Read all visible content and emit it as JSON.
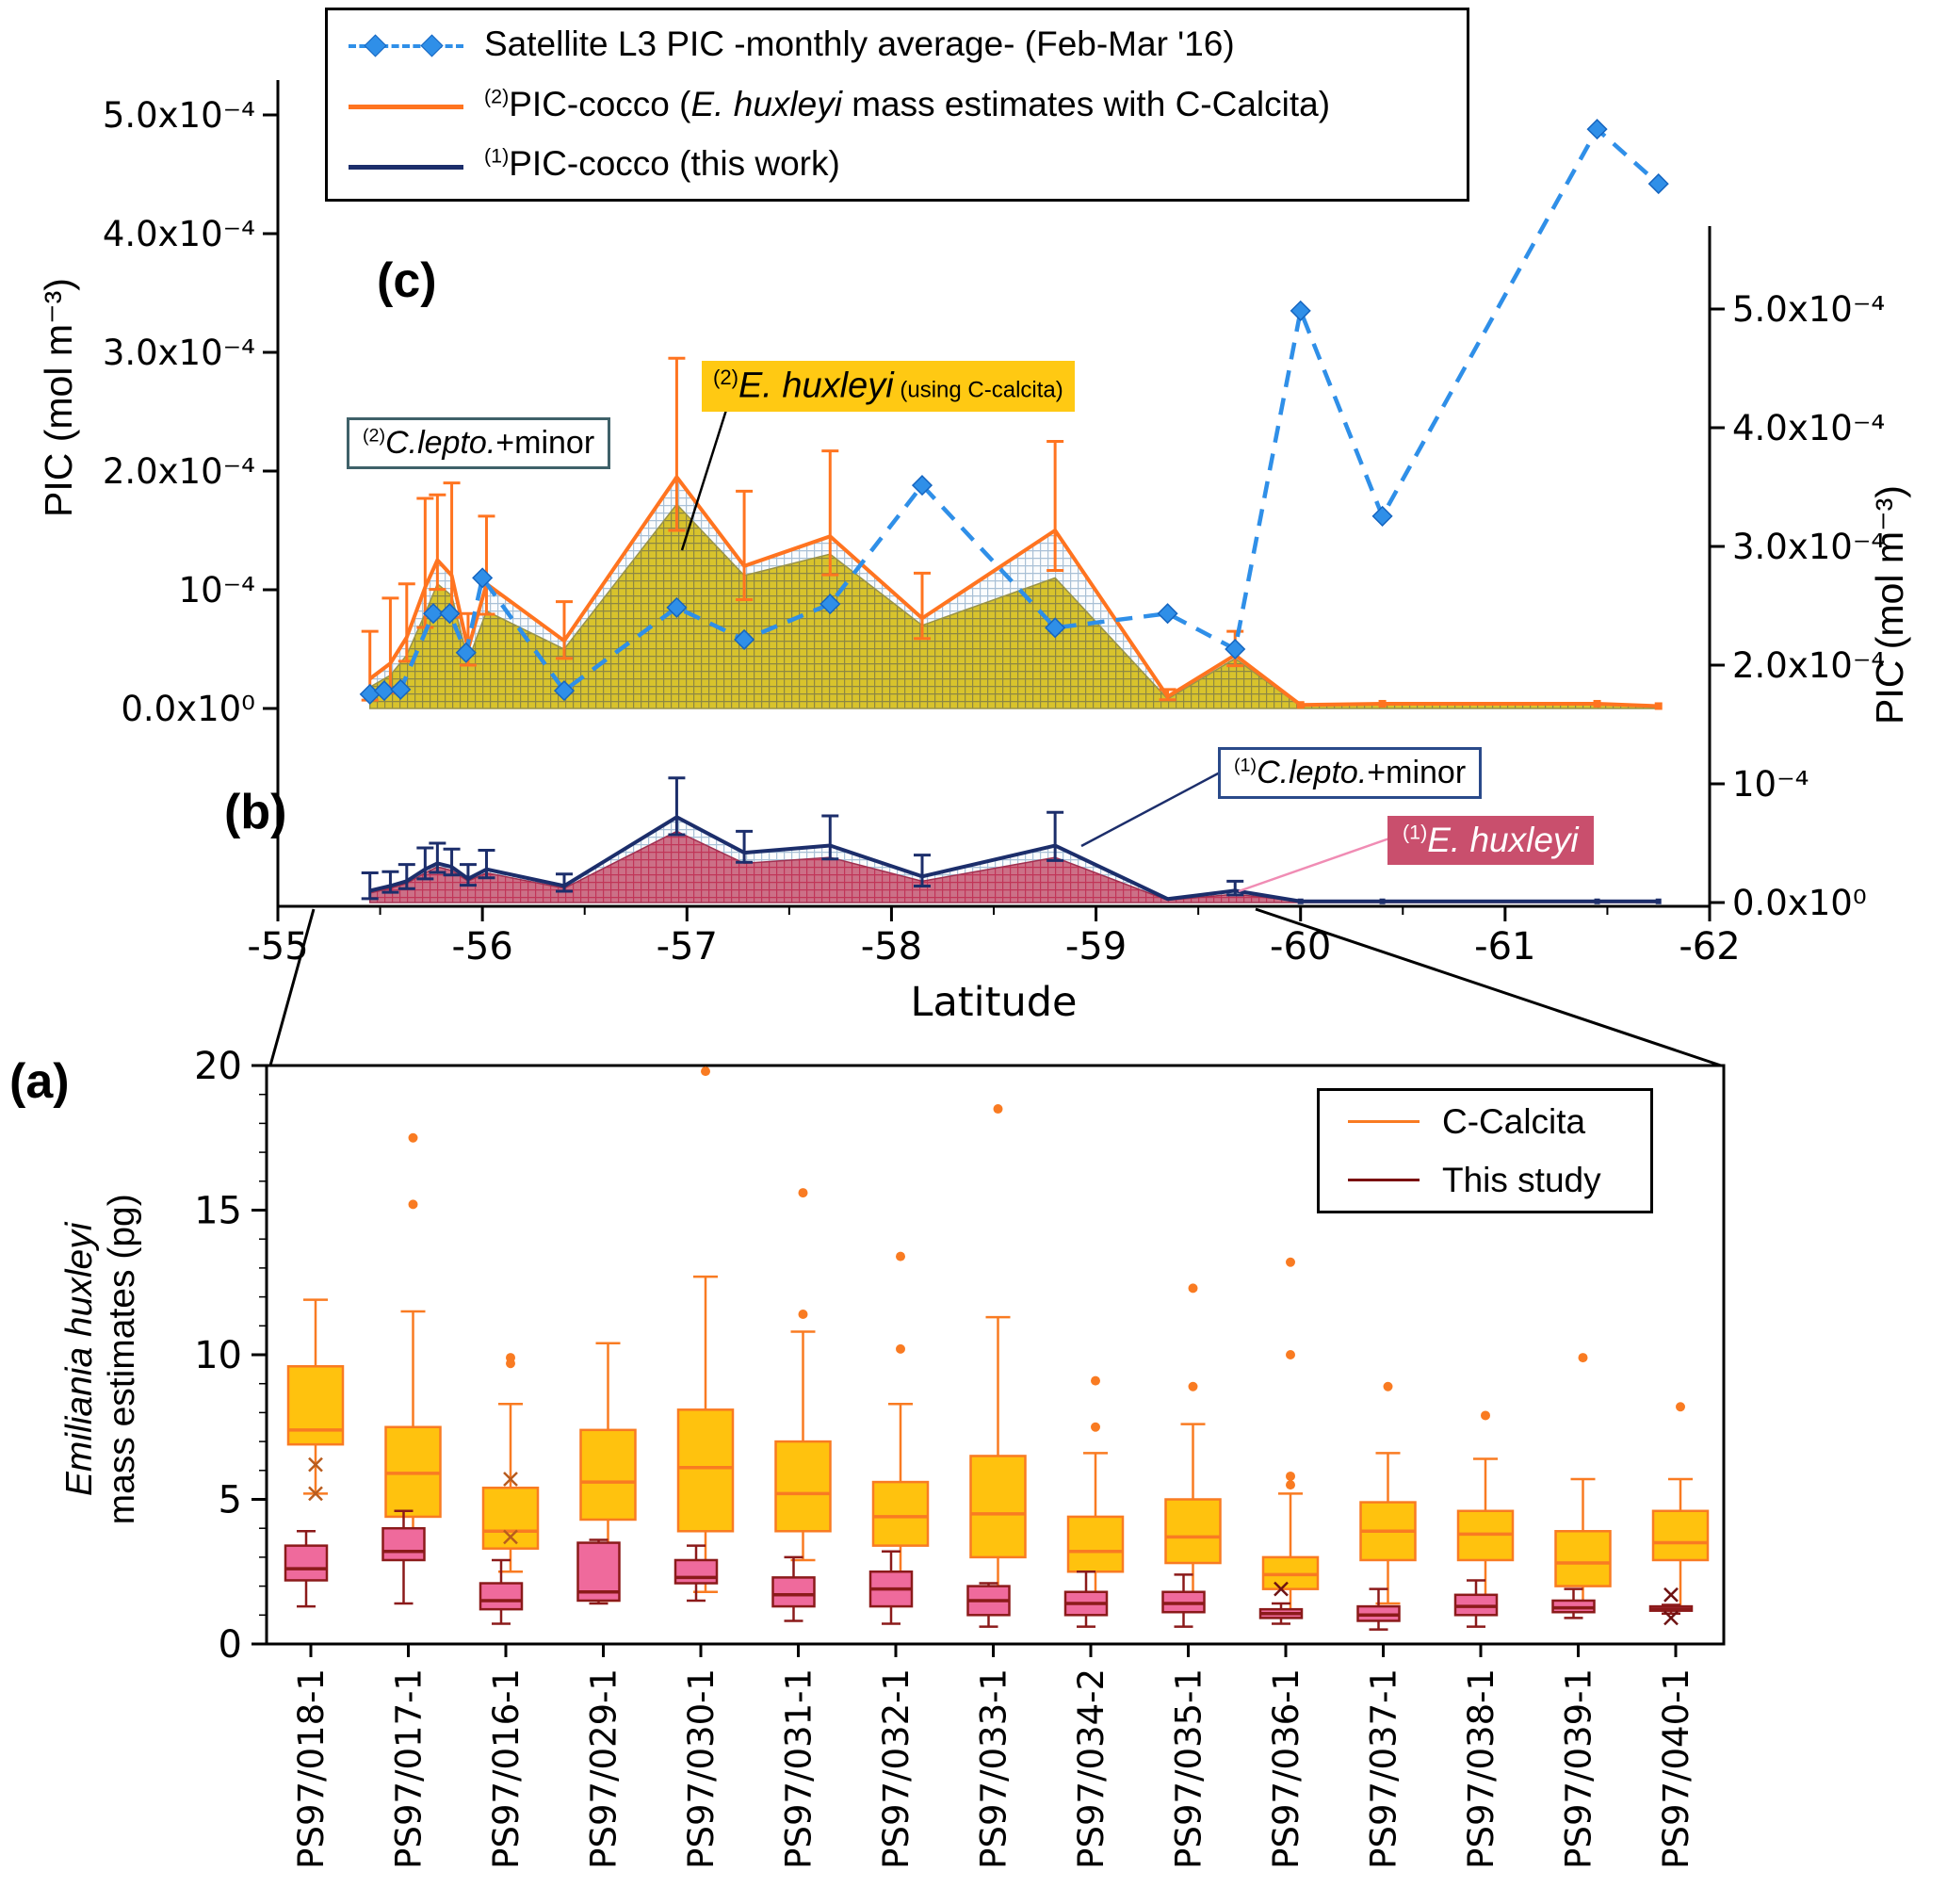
{
  "panels": {
    "a": "(a)",
    "b": "(b)",
    "c": "(c)"
  },
  "legend": {
    "entries": [
      {
        "sup": "",
        "pre": "Satellite L3 PIC -monthly average- (Feb-Mar '16)",
        "italic": "",
        "post": ""
      },
      {
        "sup": "(2)",
        "pre": "PIC-cocco (",
        "italic": "E. huxleyi",
        "post": "  mass estimates with C-Calcita)"
      },
      {
        "sup": "(1)",
        "pre": "PIC-cocco (this work)",
        "italic": "",
        "post": ""
      }
    ]
  },
  "annotations": {
    "lepto2": {
      "sup": "(2)",
      "italic": "C.lepto.",
      "post": "+minor"
    },
    "ehux2": {
      "sup": "(2)",
      "italic": "E. huxleyi",
      "small": " (using C-calcita)"
    },
    "lepto1": {
      "sup": "(1)",
      "italic": "C.lepto.",
      "post": "+minor"
    },
    "ehux1": {
      "sup": "(1)",
      "italic": "E. huxleyi"
    }
  },
  "box_legend": {
    "entries": [
      {
        "label": "C-Calcita"
      },
      {
        "label": "This study"
      }
    ]
  },
  "colors": {
    "satellite": "#2F8FE8",
    "satellite_edge": "#1565C0",
    "calcita_line": "#FF7420",
    "this_work_line": "#1C2E6B",
    "ehux2_fill": "#D8C32C",
    "ehux2_grid": "#8D8743",
    "lepto_fill": "#FBFCFD",
    "lepto_grid": "#A9C0D6",
    "ehux1_fill": "#CC7087",
    "ehux1_grid": "#C13558",
    "box_calcita_fill": "#FFC20E",
    "box_calcita_edge": "#F97B22",
    "box_study_fill": "#EF6A9C",
    "box_study_edge": "#8B1A1A",
    "ehux2_label_bg": "#FFC913",
    "ehux1_label_bg": "#C94F6D",
    "lepto2_border": "#3F6169",
    "lepto1_border": "#2A4A8A",
    "ehux1_pointer": "#F08CB4"
  },
  "chart_data": [
    {
      "id": "pic_latitude_profile",
      "type": "area",
      "title": "",
      "xlabel": "Latitude",
      "ylabel_left": "PIC (mol m⁻³)",
      "ylabel_right": "PIC (mol m⁻³)",
      "x_range": [
        -55,
        -62
      ],
      "y_unit": "x10⁻⁴ mol m⁻³",
      "y_tick_vals": [
        0,
        1,
        2,
        3,
        4,
        5
      ],
      "y_tick_labels": [
        "0.0x10⁰",
        "10⁻⁴",
        "2.0x10⁻⁴",
        "3.0x10⁻⁴",
        "4.0x10⁻⁴",
        "5.0x10⁻⁴"
      ],
      "x_tick_vals": [
        -55,
        -56,
        -57,
        -58,
        -59,
        -60,
        -61,
        -62
      ],
      "x_tick_labels": [
        "-55",
        "-56",
        "-57",
        "-58",
        "-59",
        "-60",
        "-61",
        "-62"
      ],
      "latitudes": [
        -55.45,
        -55.55,
        -55.63,
        -55.72,
        -55.78,
        -55.85,
        -55.93,
        -56.02,
        -56.4,
        -56.95,
        -57.28,
        -57.7,
        -58.15,
        -58.8,
        -59.35,
        -59.68,
        -60.0,
        -60.4,
        -61.45,
        -61.75
      ],
      "satellite": {
        "lat": [
          -55.45,
          -55.52,
          -55.6,
          -55.76,
          -55.84,
          -55.92,
          -56.0,
          -56.4,
          -56.95,
          -57.28,
          -57.7,
          -58.15,
          -58.8,
          -59.35,
          -59.68,
          -60.0,
          -60.4,
          -61.45,
          -61.75
        ],
        "pic": [
          0.12,
          0.15,
          0.16,
          0.8,
          0.8,
          0.47,
          1.1,
          0.15,
          0.85,
          0.58,
          0.88,
          1.88,
          0.68,
          0.8,
          0.5,
          3.35,
          1.62,
          4.88,
          4.42
        ]
      },
      "pic_cocco_calcita": {
        "total": [
          0.25,
          0.38,
          0.6,
          1.02,
          1.25,
          1.12,
          0.5,
          1.05,
          0.57,
          1.95,
          1.2,
          1.45,
          0.76,
          1.5,
          0.1,
          0.45,
          0.03,
          0.04,
          0.04,
          0.02
        ],
        "err_up": [
          0.4,
          0.55,
          0.45,
          0.75,
          0.55,
          0.78,
          0.3,
          0.57,
          0.33,
          1.0,
          0.63,
          0.72,
          0.38,
          0.75,
          0.06,
          0.2,
          0,
          0,
          0,
          0
        ],
        "e_huxleyi": [
          0.18,
          0.28,
          0.45,
          0.8,
          1.05,
          0.95,
          0.4,
          0.82,
          0.5,
          1.72,
          1.12,
          1.3,
          0.7,
          1.1,
          0.08,
          0.42,
          0.02,
          0.03,
          0.03,
          0.01
        ]
      },
      "pic_cocco_this_work": {
        "total": [
          0.1,
          0.14,
          0.18,
          0.28,
          0.33,
          0.3,
          0.2,
          0.28,
          0.14,
          0.72,
          0.42,
          0.48,
          0.22,
          0.48,
          0.03,
          0.1,
          0.01,
          0.01,
          0.01,
          0.01
        ],
        "err_up": [
          0.15,
          0.12,
          0.14,
          0.18,
          0.17,
          0.15,
          0.12,
          0.16,
          0.1,
          0.33,
          0.18,
          0.25,
          0.18,
          0.28,
          0,
          0.08,
          0,
          0,
          0,
          0
        ],
        "e_huxleyi": [
          0.08,
          0.12,
          0.16,
          0.25,
          0.3,
          0.27,
          0.18,
          0.25,
          0.12,
          0.6,
          0.33,
          0.38,
          0.18,
          0.38,
          0.02,
          0.07,
          0.01,
          0.01,
          0.01,
          0.01
        ]
      }
    },
    {
      "id": "ehux_mass_boxplot",
      "type": "box",
      "title": "",
      "ylabel_line1": "Emiliania huxleyi",
      "ylabel_line2": "mass estimates (pg)",
      "ylim": [
        0,
        20
      ],
      "y_ticks": [
        0,
        5,
        10,
        15,
        20
      ],
      "stations": [
        "PS97/018-1",
        "PS97/017-1",
        "PS97/016-1",
        "PS97/029-1",
        "PS97/030-1",
        "PS97/031-1",
        "PS97/032-1",
        "PS97/033-1",
        "PS97/034-2",
        "PS97/035-1",
        "PS97/036-1",
        "PS97/037-1",
        "PS97/038-1",
        "PS97/039-1",
        "PS97/040-1"
      ],
      "c_calcita": [
        {
          "whislo": 5.2,
          "q1": 6.9,
          "med": 7.4,
          "q3": 9.6,
          "whishi": 11.9,
          "outliers": [],
          "xmarks": [
            6.2,
            5.2
          ]
        },
        {
          "whislo": 3.0,
          "q1": 4.4,
          "med": 5.9,
          "q3": 7.5,
          "whishi": 11.5,
          "outliers": [
            15.2,
            17.5
          ],
          "xmarks": []
        },
        {
          "whislo": 2.5,
          "q1": 3.3,
          "med": 3.9,
          "q3": 5.4,
          "whishi": 8.3,
          "outliers": [
            9.7,
            9.9
          ],
          "xmarks": [
            5.7,
            3.7
          ]
        },
        {
          "whislo": 1.5,
          "q1": 4.3,
          "med": 5.6,
          "q3": 7.4,
          "whishi": 10.4,
          "outliers": [],
          "xmarks": []
        },
        {
          "whislo": 1.8,
          "q1": 3.9,
          "med": 6.1,
          "q3": 8.1,
          "whishi": 12.7,
          "outliers": [
            19.8
          ],
          "xmarks": []
        },
        {
          "whislo": 2.9,
          "q1": 3.9,
          "med": 5.2,
          "q3": 7.0,
          "whishi": 10.8,
          "outliers": [
            11.4,
            15.6
          ],
          "xmarks": []
        },
        {
          "whislo": 1.6,
          "q1": 3.4,
          "med": 4.4,
          "q3": 5.6,
          "whishi": 8.3,
          "outliers": [
            10.2,
            13.4
          ],
          "xmarks": []
        },
        {
          "whislo": 1.9,
          "q1": 3.0,
          "med": 4.5,
          "q3": 6.5,
          "whishi": 11.3,
          "outliers": [
            18.5
          ],
          "xmarks": []
        },
        {
          "whislo": 1.5,
          "q1": 2.5,
          "med": 3.2,
          "q3": 4.4,
          "whishi": 6.6,
          "outliers": [
            7.5,
            9.1
          ],
          "xmarks": []
        },
        {
          "whislo": 1.6,
          "q1": 2.8,
          "med": 3.7,
          "q3": 5.0,
          "whishi": 7.6,
          "outliers": [
            8.9,
            12.3
          ],
          "xmarks": []
        },
        {
          "whislo": 1.1,
          "q1": 1.9,
          "med": 2.4,
          "q3": 3.0,
          "whishi": 5.2,
          "outliers": [
            5.5,
            5.8,
            10.0,
            13.2
          ],
          "xmarks": []
        },
        {
          "whislo": 1.4,
          "q1": 2.9,
          "med": 3.9,
          "q3": 4.9,
          "whishi": 6.6,
          "outliers": [
            8.9
          ],
          "xmarks": []
        },
        {
          "whislo": 1.3,
          "q1": 2.9,
          "med": 3.8,
          "q3": 4.6,
          "whishi": 6.4,
          "outliers": [
            7.9
          ],
          "xmarks": []
        },
        {
          "whislo": 1.2,
          "q1": 2.0,
          "med": 2.8,
          "q3": 3.9,
          "whishi": 5.7,
          "outliers": [
            9.9
          ],
          "xmarks": []
        },
        {
          "whislo": 1.2,
          "q1": 2.9,
          "med": 3.5,
          "q3": 4.6,
          "whishi": 5.7,
          "outliers": [
            8.2
          ],
          "xmarks": []
        }
      ],
      "this_study": [
        {
          "whislo": 1.3,
          "q1": 2.2,
          "med": 2.6,
          "q3": 3.4,
          "whishi": 3.9,
          "outliers": [],
          "xmarks": []
        },
        {
          "whislo": 1.4,
          "q1": 2.9,
          "med": 3.2,
          "q3": 4.0,
          "whishi": 4.6,
          "outliers": [],
          "xmarks": []
        },
        {
          "whislo": 0.7,
          "q1": 1.2,
          "med": 1.5,
          "q3": 2.1,
          "whishi": 2.9,
          "outliers": [],
          "xmarks": []
        },
        {
          "whislo": 1.4,
          "q1": 1.5,
          "med": 1.8,
          "q3": 3.5,
          "whishi": 3.6,
          "outliers": [],
          "xmarks": []
        },
        {
          "whislo": 1.5,
          "q1": 2.1,
          "med": 2.3,
          "q3": 2.9,
          "whishi": 3.4,
          "outliers": [],
          "xmarks": []
        },
        {
          "whislo": 0.8,
          "q1": 1.3,
          "med": 1.7,
          "q3": 2.3,
          "whishi": 3.0,
          "outliers": [],
          "xmarks": []
        },
        {
          "whislo": 0.7,
          "q1": 1.3,
          "med": 1.9,
          "q3": 2.5,
          "whishi": 3.2,
          "outliers": [],
          "xmarks": []
        },
        {
          "whislo": 0.6,
          "q1": 1.0,
          "med": 1.5,
          "q3": 2.0,
          "whishi": 2.1,
          "outliers": [],
          "xmarks": []
        },
        {
          "whislo": 0.6,
          "q1": 1.0,
          "med": 1.4,
          "q3": 1.8,
          "whishi": 2.5,
          "outliers": [],
          "xmarks": []
        },
        {
          "whislo": 0.6,
          "q1": 1.1,
          "med": 1.4,
          "q3": 1.8,
          "whishi": 2.4,
          "outliers": [],
          "xmarks": []
        },
        {
          "whislo": 0.7,
          "q1": 0.9,
          "med": 1.05,
          "q3": 1.2,
          "whishi": 1.4,
          "outliers": [],
          "xmarks": [
            1.9
          ]
        },
        {
          "whislo": 0.5,
          "q1": 0.8,
          "med": 1.0,
          "q3": 1.3,
          "whishi": 1.9,
          "outliers": [],
          "xmarks": []
        },
        {
          "whislo": 0.6,
          "q1": 1.0,
          "med": 1.3,
          "q3": 1.7,
          "whishi": 2.2,
          "outliers": [],
          "xmarks": []
        },
        {
          "whislo": 0.9,
          "q1": 1.1,
          "med": 1.25,
          "q3": 1.5,
          "whishi": 1.9,
          "outliers": [],
          "xmarks": []
        },
        {
          "whislo": 1.05,
          "q1": 1.15,
          "med": 1.2,
          "q3": 1.3,
          "whishi": 1.35,
          "outliers": [],
          "xmarks": [
            1.7,
            0.9
          ]
        }
      ]
    }
  ]
}
